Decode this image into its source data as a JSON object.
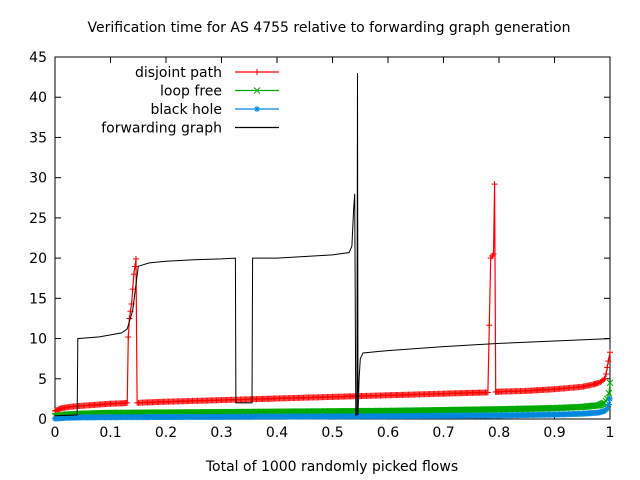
{
  "chart_data": {
    "type": "line",
    "title": "Verification time for AS 4755 relative to forwarding graph generation",
    "xlabel": "Total of 1000 randomly picked flows",
    "ylabel": "",
    "xlim": [
      0,
      1
    ],
    "ylim": [
      0,
      45
    ],
    "x_ticks": [
      "0",
      "0.1",
      "0.2",
      "0.3",
      "0.4",
      "0.5",
      "0.6",
      "0.7",
      "0.8",
      "0.9",
      "1"
    ],
    "y_ticks": [
      "0",
      "5",
      "10",
      "15",
      "20",
      "25",
      "30",
      "35",
      "40",
      "45"
    ],
    "grid": false,
    "legend_position": "top-left",
    "series": [
      {
        "name": "disjoint path",
        "color": "#ff0000",
        "marker": "plus",
        "points": [
          [
            0.0,
            1.0
          ],
          [
            0.01,
            1.3
          ],
          [
            0.02,
            1.45
          ],
          [
            0.04,
            1.6
          ],
          [
            0.06,
            1.7
          ],
          [
            0.08,
            1.8
          ],
          [
            0.1,
            1.9
          ],
          [
            0.12,
            1.95
          ],
          [
            0.13,
            2.0
          ],
          [
            0.132,
            10.2
          ],
          [
            0.134,
            12.5
          ],
          [
            0.138,
            14.3
          ],
          [
            0.142,
            18.0
          ],
          [
            0.146,
            19.9
          ],
          [
            0.148,
            2.0
          ],
          [
            0.16,
            2.05
          ],
          [
            0.2,
            2.15
          ],
          [
            0.25,
            2.25
          ],
          [
            0.3,
            2.35
          ],
          [
            0.35,
            2.45
          ],
          [
            0.4,
            2.55
          ],
          [
            0.45,
            2.65
          ],
          [
            0.5,
            2.75
          ],
          [
            0.55,
            2.85
          ],
          [
            0.6,
            2.95
          ],
          [
            0.65,
            3.05
          ],
          [
            0.7,
            3.15
          ],
          [
            0.75,
            3.25
          ],
          [
            0.78,
            3.3
          ],
          [
            0.785,
            20.0
          ],
          [
            0.788,
            20.3
          ],
          [
            0.79,
            20.5
          ],
          [
            0.792,
            29.2
          ],
          [
            0.794,
            3.35
          ],
          [
            0.8,
            3.4
          ],
          [
            0.85,
            3.5
          ],
          [
            0.9,
            3.7
          ],
          [
            0.95,
            4.0
          ],
          [
            0.97,
            4.3
          ],
          [
            0.98,
            4.5
          ],
          [
            0.985,
            4.7
          ],
          [
            0.99,
            5.0
          ],
          [
            0.993,
            5.6
          ],
          [
            0.995,
            6.4
          ],
          [
            0.997,
            7.2
          ],
          [
            1.0,
            8.3
          ]
        ]
      },
      {
        "name": "loop free",
        "color": "#00aa00",
        "marker": "cross",
        "points": [
          [
            0.0,
            0.35
          ],
          [
            0.02,
            0.55
          ],
          [
            0.05,
            0.65
          ],
          [
            0.1,
            0.75
          ],
          [
            0.2,
            0.8
          ],
          [
            0.3,
            0.85
          ],
          [
            0.4,
            0.9
          ],
          [
            0.5,
            0.95
          ],
          [
            0.6,
            1.0
          ],
          [
            0.7,
            1.1
          ],
          [
            0.8,
            1.2
          ],
          [
            0.9,
            1.35
          ],
          [
            0.95,
            1.5
          ],
          [
            0.98,
            1.7
          ],
          [
            0.99,
            2.0
          ],
          [
            0.995,
            2.5
          ],
          [
            0.998,
            3.2
          ],
          [
            1.0,
            4.5
          ]
        ]
      },
      {
        "name": "black hole",
        "color": "#0088dd",
        "marker": "star",
        "points": [
          [
            0.0,
            0.05
          ],
          [
            0.02,
            0.15
          ],
          [
            0.05,
            0.2
          ],
          [
            0.1,
            0.22
          ],
          [
            0.2,
            0.25
          ],
          [
            0.3,
            0.27
          ],
          [
            0.4,
            0.3
          ],
          [
            0.5,
            0.32
          ],
          [
            0.6,
            0.35
          ],
          [
            0.7,
            0.4
          ],
          [
            0.8,
            0.45
          ],
          [
            0.9,
            0.55
          ],
          [
            0.95,
            0.65
          ],
          [
            0.98,
            0.8
          ],
          [
            0.99,
            1.0
          ],
          [
            0.995,
            1.3
          ],
          [
            0.998,
            1.8
          ],
          [
            1.0,
            2.5
          ]
        ]
      },
      {
        "name": "forwarding graph",
        "color": "#000000",
        "marker": "none",
        "points": [
          [
            0.0,
            0.4
          ],
          [
            0.04,
            0.5
          ],
          [
            0.041,
            10.0
          ],
          [
            0.08,
            10.2
          ],
          [
            0.12,
            10.7
          ],
          [
            0.13,
            11.2
          ],
          [
            0.14,
            13.5
          ],
          [
            0.15,
            19.0
          ],
          [
            0.17,
            19.4
          ],
          [
            0.2,
            19.6
          ],
          [
            0.25,
            19.8
          ],
          [
            0.3,
            19.9
          ],
          [
            0.325,
            20.0
          ],
          [
            0.326,
            2.0
          ],
          [
            0.355,
            2.0
          ],
          [
            0.356,
            20.0
          ],
          [
            0.4,
            20.0
          ],
          [
            0.45,
            20.2
          ],
          [
            0.5,
            20.4
          ],
          [
            0.53,
            20.7
          ],
          [
            0.535,
            21.5
          ],
          [
            0.538,
            26.0
          ],
          [
            0.54,
            28.0
          ],
          [
            0.542,
            0.5
          ],
          [
            0.544,
            0.5
          ],
          [
            0.545,
            43.0
          ],
          [
            0.546,
            0.5
          ],
          [
            0.548,
            5.0
          ],
          [
            0.55,
            7.5
          ],
          [
            0.555,
            8.2
          ],
          [
            0.6,
            8.5
          ],
          [
            0.7,
            9.0
          ],
          [
            0.8,
            9.4
          ],
          [
            0.9,
            9.7
          ],
          [
            1.0,
            10.0
          ]
        ]
      }
    ]
  }
}
